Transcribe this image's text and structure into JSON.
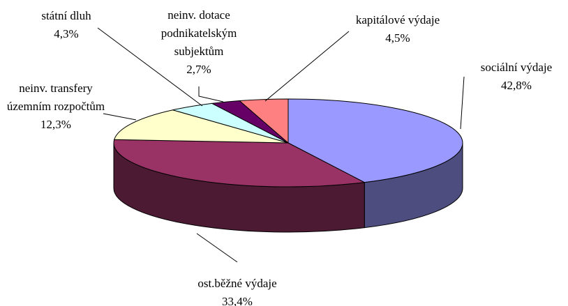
{
  "chart_data": {
    "type": "pie3d",
    "categories": [
      "sociální výdaje",
      "ost.běžné výdaje",
      "neinv. transfery územním rozpočtům",
      "státní dluh",
      "neinv. dotace podnikatelským subjektům",
      "kapitálové výdaje"
    ],
    "values": [
      42.8,
      33.4,
      12.3,
      4.3,
      2.7,
      4.5
    ],
    "value_labels": [
      "42,8%",
      "33,4%",
      "12,3%",
      "4,3%",
      "2,7%",
      "4,5%"
    ],
    "colors": [
      "#9999ff",
      "#993366",
      "#ffffcc",
      "#ccffff",
      "#660066",
      "#ff8080"
    ]
  }
}
